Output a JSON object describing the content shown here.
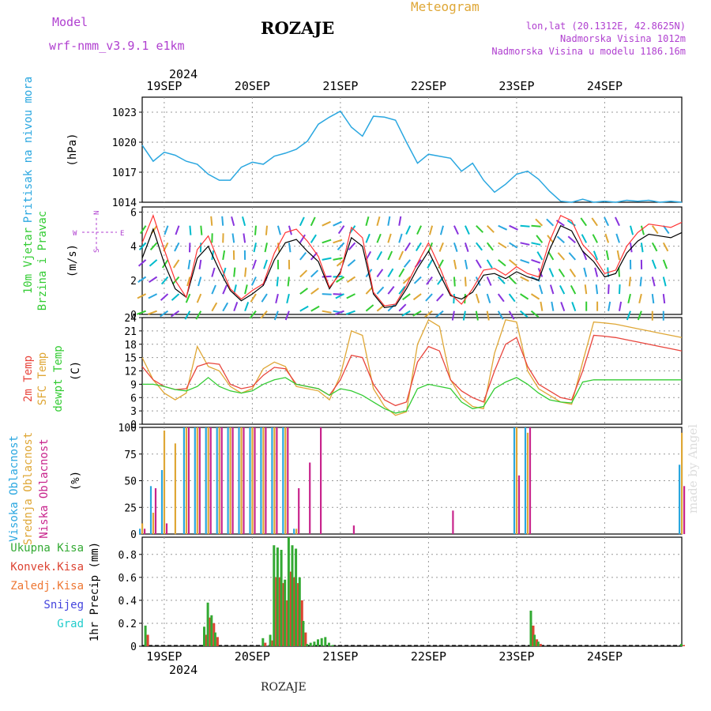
{
  "header": {
    "model_label": "Model",
    "model_name": "wrf-nmm_v3.9.1 e1km",
    "station": "ROZAJE",
    "kind": "Meteogram",
    "coords": "lon,lat (20.1312E, 42.8625N)",
    "elevation": "Nadmorska Visina 1012m",
    "model_elevation": "Nadmorska Visina u modelu 1186.16m",
    "year_top": "2024",
    "year_bottom": "2024",
    "footer": "ROZAJE",
    "credit": "made by Angel"
  },
  "colors": {
    "pressure": "#2aa7e0",
    "t2m": "#e8453c",
    "tsfc": "#dfa736",
    "dewpt": "#33cc33",
    "high_cloud": "#2aa7e0",
    "mid_cloud": "#dfa736",
    "low_cloud": "#c8248c",
    "wind_speed": "#000000",
    "gust": "#ff3333",
    "total_precip": "#33aa33",
    "conv_precip": "#dd4433",
    "freezing": "#ee7733",
    "snow": "#4444dd",
    "hail": "#22cccc"
  },
  "panels": {
    "pressure": {
      "label1": "Pritisak na nivou mora",
      "unit": "(hPa)"
    },
    "wind": {
      "label1": "10m Vjetar",
      "label2": "Brzina i Pravac",
      "unit": "(m/s)",
      "compass_n": "N",
      "compass_s": "S",
      "compass_w": "W",
      "compass_e": "E"
    },
    "temp": {
      "label1": "2m Temp",
      "label2": "SFC Temp",
      "label3": "dewpt Temp",
      "unit": "(C)"
    },
    "cloud": {
      "label1": "Visoka Oblacnost",
      "label2": "Srednja Oblacnost",
      "label3": "Niska Oblacnost",
      "unit": "(%)"
    },
    "precip": {
      "legend": [
        "Ukupna Kisa",
        "Konvek.Kisa",
        "Zaledj.Kisa",
        "Snijeg",
        "Grad"
      ],
      "unit": "1hr Precip (mm)"
    }
  },
  "chart_data": [
    {
      "type": "line",
      "name": "pressure",
      "x_unit": "hours from 2024-09-18 18 UTC",
      "dates": [
        "19SEP",
        "20SEP",
        "21SEP",
        "22SEP",
        "23SEP",
        "24SEP"
      ],
      "ylabel": "(hPa)",
      "ylim": [
        1014,
        1024.5
      ],
      "yticks": [
        1014,
        1017,
        1020,
        1023
      ],
      "x": [
        0,
        3,
        6,
        9,
        12,
        15,
        18,
        21,
        24,
        27,
        30,
        33,
        36,
        39,
        42,
        45,
        48,
        51,
        54,
        57,
        60,
        63,
        66,
        69,
        72,
        75,
        78,
        81,
        84,
        87,
        90,
        93,
        96,
        99,
        102,
        105,
        108,
        111,
        114,
        117,
        120,
        123,
        126,
        129,
        132,
        135,
        138,
        141,
        144,
        147
      ],
      "values": [
        1019.7,
        1018.1,
        1019.0,
        1018.7,
        1018.1,
        1017.8,
        1016.8,
        1016.2,
        1016.2,
        1017.5,
        1018.0,
        1017.8,
        1018.6,
        1018.9,
        1019.3,
        1020.1,
        1021.8,
        1022.5,
        1023.1,
        1021.5,
        1020.6,
        1022.6,
        1022.5,
        1022.2,
        1020.0,
        1017.9,
        1018.8,
        1018.6,
        1018.4,
        1017.1,
        1017.9,
        1016.2,
        1015.0,
        1015.8,
        1016.8,
        1017.1,
        1016.3,
        1015.1,
        1014.1,
        1014.0,
        1014.3,
        1014.0,
        1014.1,
        1014.0,
        1014.2,
        1014.1,
        1014.2,
        1014.0,
        1014.1,
        1014.0
      ]
    },
    {
      "type": "line",
      "name": "wind",
      "x_unit": "hours from 2024-09-18 18 UTC",
      "ylabel": "(m/s)",
      "ylim": [
        0,
        6.3
      ],
      "yticks": [
        0,
        2,
        4,
        6
      ],
      "x": [
        0,
        3,
        6,
        9,
        12,
        15,
        18,
        21,
        24,
        27,
        30,
        33,
        36,
        39,
        42,
        45,
        48,
        51,
        54,
        57,
        60,
        63,
        66,
        69,
        72,
        75,
        78,
        81,
        84,
        87,
        90,
        93,
        96,
        99,
        102,
        105,
        108,
        111,
        114,
        117,
        120,
        123,
        126,
        129,
        132,
        135,
        138,
        141,
        144,
        147
      ],
      "series": [
        {
          "name": "wind_speed",
          "values": [
            3.3,
            5.0,
            3.0,
            1.5,
            1.0,
            3.3,
            4.0,
            2.6,
            1.4,
            0.8,
            1.2,
            1.7,
            3.2,
            4.2,
            4.4,
            3.7,
            3.1,
            1.5,
            2.5,
            4.5,
            4.0,
            1.2,
            0.4,
            0.5,
            1.5,
            2.7,
            3.7,
            2.4,
            1.1,
            0.9,
            1.3,
            2.3,
            2.4,
            2.1,
            2.5,
            2.2,
            2.0,
            3.8,
            5.2,
            4.9,
            3.7,
            3.1,
            2.2,
            2.4,
            3.6,
            4.3,
            4.7,
            4.6,
            4.5,
            4.8
          ]
        },
        {
          "name": "gust",
          "values": [
            4.2,
            5.8,
            3.8,
            2.0,
            1.0,
            3.8,
            4.6,
            3.0,
            1.5,
            0.9,
            1.4,
            1.8,
            3.6,
            4.8,
            5.0,
            4.3,
            3.4,
            1.6,
            2.4,
            5.1,
            4.5,
            1.3,
            0.5,
            0.6,
            1.7,
            3.0,
            4.2,
            2.8,
            1.2,
            0.6,
            1.5,
            2.6,
            2.7,
            2.3,
            2.8,
            2.4,
            2.2,
            4.3,
            5.8,
            5.5,
            4.1,
            3.4,
            2.4,
            2.6,
            4.0,
            4.8,
            5.3,
            5.2,
            5.1,
            5.4
          ]
        }
      ]
    },
    {
      "type": "line",
      "name": "temperature",
      "x_unit": "hours from 2024-09-18 18 UTC",
      "ylabel": "(C)",
      "ylim": [
        0,
        24
      ],
      "yticks": [
        0,
        3,
        6,
        9,
        12,
        15,
        18,
        21,
        24
      ],
      "x": [
        0,
        3,
        6,
        9,
        12,
        15,
        18,
        21,
        24,
        27,
        30,
        33,
        36,
        39,
        42,
        45,
        48,
        51,
        54,
        57,
        60,
        63,
        66,
        69,
        72,
        75,
        78,
        81,
        84,
        87,
        90,
        93,
        96,
        99,
        102,
        105,
        108,
        111,
        114,
        117,
        120,
        123,
        126,
        129,
        132,
        135,
        138,
        141,
        144,
        147
      ],
      "series": [
        {
          "name": "t2m",
          "values": [
            13.0,
            10.0,
            8.5,
            7.8,
            8.0,
            13.0,
            13.8,
            13.5,
            9.0,
            8.0,
            8.5,
            11.0,
            12.8,
            12.5,
            9.0,
            8.5,
            8.0,
            6.5,
            10.0,
            15.5,
            15.0,
            9.0,
            5.5,
            4.2,
            5.0,
            14.0,
            17.5,
            16.5,
            10.0,
            7.5,
            6.0,
            5.0,
            12.0,
            18.0,
            19.5,
            13.0,
            9.0,
            7.5,
            6.0,
            5.5,
            12.0,
            20.0,
            19.8,
            19.5,
            19.0,
            18.5,
            18.0,
            17.5,
            17.0,
            16.5
          ]
        },
        {
          "name": "tsfc",
          "values": [
            15.0,
            10.0,
            7.0,
            5.5,
            7.0,
            17.5,
            13.0,
            12.0,
            8.5,
            7.0,
            8.0,
            12.5,
            14.0,
            13.0,
            8.5,
            8.0,
            7.5,
            5.5,
            11.0,
            21.0,
            20.0,
            8.0,
            4.0,
            2.0,
            2.8,
            18.0,
            23.5,
            22.0,
            10.0,
            6.0,
            4.0,
            3.5,
            16.0,
            23.5,
            23.0,
            12.0,
            8.0,
            6.5,
            5.0,
            4.5,
            14.0,
            23.0,
            22.8,
            22.5,
            22.0,
            21.5,
            21.0,
            20.5,
            20.0,
            19.5
          ]
        },
        {
          "name": "dewpt",
          "values": [
            9.0,
            9.0,
            8.5,
            7.8,
            7.5,
            8.5,
            10.5,
            8.5,
            7.5,
            7.0,
            7.5,
            9.0,
            10.0,
            10.5,
            9.0,
            8.5,
            8.0,
            6.5,
            8.0,
            7.5,
            6.5,
            5.0,
            3.5,
            2.5,
            3.0,
            8.0,
            9.0,
            8.5,
            8.0,
            5.0,
            3.5,
            4.0,
            8.0,
            9.5,
            10.5,
            9.0,
            7.0,
            5.5,
            5.0,
            4.8,
            9.5,
            10.0,
            10.0,
            10.0,
            10.0,
            10.0,
            10.0,
            10.0,
            10.0,
            10.0
          ]
        }
      ]
    },
    {
      "type": "bar",
      "name": "cloud_cover",
      "x_unit": "hours from 2024-09-18 18 UTC",
      "ylabel": "(%)",
      "ylim": [
        0,
        100
      ],
      "yticks": [
        0,
        25,
        50,
        75,
        100
      ],
      "x": [
        0,
        3,
        6,
        9,
        12,
        15,
        18,
        21,
        24,
        27,
        30,
        33,
        36,
        39,
        42,
        45,
        48,
        51,
        54,
        57,
        60,
        63,
        66,
        69,
        72,
        75,
        78,
        81,
        84,
        87,
        90,
        93,
        96,
        99,
        102,
        105,
        108,
        111,
        114,
        117,
        120,
        123,
        126,
        129,
        132,
        135,
        138,
        141,
        144,
        147
      ],
      "series": [
        {
          "name": "high",
          "values": [
            5,
            45,
            60,
            0,
            100,
            100,
            100,
            100,
            100,
            100,
            100,
            100,
            100,
            100,
            5,
            0,
            0,
            0,
            0,
            0,
            0,
            0,
            0,
            0,
            0,
            0,
            0,
            0,
            0,
            0,
            0,
            0,
            0,
            0,
            100,
            100,
            0,
            0,
            0,
            0,
            0,
            0,
            0,
            0,
            0,
            0,
            0,
            0,
            0,
            65
          ]
        },
        {
          "name": "mid",
          "values": [
            10,
            20,
            97,
            85,
            100,
            100,
            100,
            100,
            100,
            100,
            100,
            100,
            100,
            100,
            5,
            0,
            0,
            0,
            0,
            0,
            0,
            0,
            0,
            0,
            0,
            0,
            0,
            0,
            0,
            0,
            0,
            0,
            0,
            0,
            100,
            95,
            0,
            0,
            0,
            0,
            0,
            0,
            0,
            0,
            0,
            0,
            0,
            0,
            0,
            95
          ]
        },
        {
          "name": "low",
          "values": [
            5,
            43,
            10,
            0,
            100,
            100,
            100,
            100,
            100,
            100,
            100,
            100,
            100,
            100,
            43,
            67,
            100,
            0,
            0,
            8,
            0,
            0,
            0,
            0,
            0,
            0,
            0,
            0,
            22,
            0,
            0,
            0,
            0,
            0,
            55,
            100,
            0,
            0,
            0,
            0,
            0,
            0,
            0,
            0,
            0,
            0,
            0,
            0,
            0,
            45
          ]
        }
      ]
    },
    {
      "type": "bar",
      "name": "precipitation",
      "x_unit": "hours from 2024-09-18 18 UTC",
      "ylabel": "1hr Precip (mm)",
      "ylim": [
        0,
        0.95
      ],
      "yticks": [
        0,
        0.2,
        0.4,
        0.6,
        0.8
      ],
      "x": [
        1,
        17,
        18,
        19,
        20,
        33,
        35,
        36,
        37,
        38,
        39,
        40,
        41,
        42,
        43,
        44,
        45,
        46,
        47,
        48,
        49,
        50,
        51,
        52,
        106,
        107,
        108,
        147
      ],
      "series": [
        {
          "name": "total",
          "values": [
            0.18,
            0.17,
            0.38,
            0.27,
            0.12,
            0.07,
            0.1,
            0.88,
            0.86,
            0.84,
            0.58,
            0.95,
            0.88,
            0.85,
            0.6,
            0.22,
            0.02,
            0.03,
            0.04,
            0.06,
            0.07,
            0.08,
            0.03,
            0.01,
            0.31,
            0.1,
            0.04,
            0.02
          ]
        },
        {
          "name": "convective",
          "values": [
            0.1,
            0.1,
            0.25,
            0.2,
            0.08,
            0.03,
            0.05,
            0.6,
            0.6,
            0.55,
            0.4,
            0.65,
            0.6,
            0.55,
            0.4,
            0.12,
            0.0,
            0.0,
            0.0,
            0.0,
            0.0,
            0.0,
            0.0,
            0.0,
            0.18,
            0.06,
            0.02,
            0.01
          ]
        }
      ]
    }
  ]
}
